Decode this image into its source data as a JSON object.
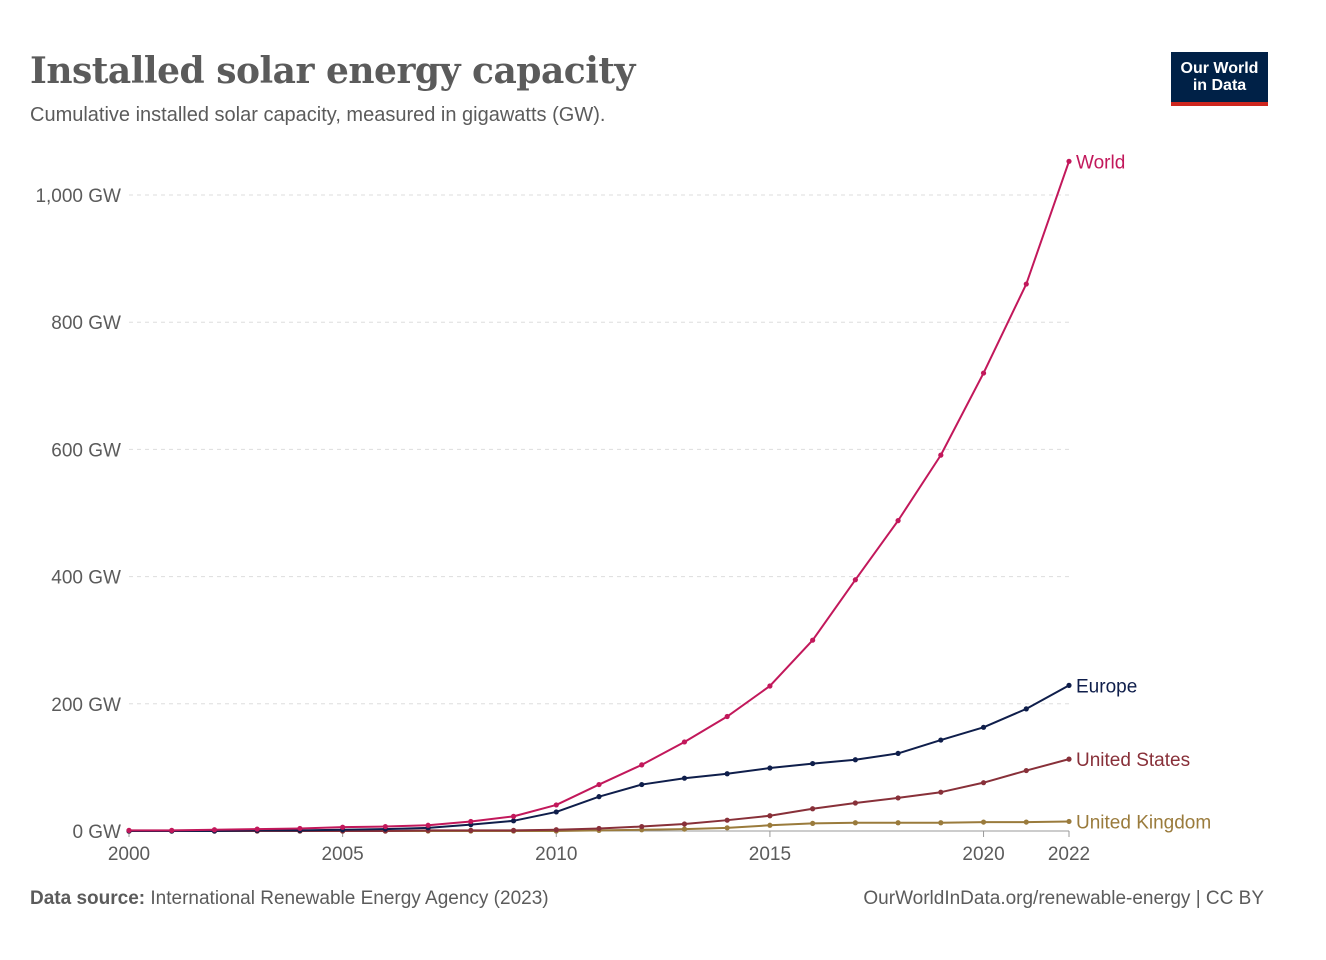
{
  "header": {
    "title": "Installed solar energy capacity",
    "subtitle": "Cumulative installed solar capacity, measured in gigawatts (GW).",
    "logo_line1": "Our World",
    "logo_line2": "in Data"
  },
  "footer": {
    "source_label": "Data source:",
    "source_text": "International Renewable Energy Agency (2023)",
    "url_text": "OurWorldInData.org/renewable-energy | CC BY"
  },
  "chart_data": {
    "type": "line",
    "title": "Installed solar energy capacity",
    "subtitle": "Cumulative installed solar capacity, measured in gigawatts (GW).",
    "xlabel": "",
    "ylabel": "",
    "xlim": [
      2000,
      2022
    ],
    "ylim": [
      0,
      1000
    ],
    "x_ticks": [
      "2000",
      "2005",
      "2010",
      "2015",
      "2020",
      "2022"
    ],
    "y_ticks": [
      "0 GW",
      "200 GW",
      "400 GW",
      "600 GW",
      "800 GW",
      "1,000 GW"
    ],
    "y_tick_values": [
      0,
      200,
      400,
      600,
      800,
      1000
    ],
    "grid": true,
    "legend": "inline labels at line ends (right)",
    "x": [
      2000,
      2001,
      2002,
      2003,
      2004,
      2005,
      2006,
      2007,
      2008,
      2009,
      2010,
      2011,
      2012,
      2013,
      2014,
      2015,
      2016,
      2017,
      2018,
      2019,
      2020,
      2021,
      2022
    ],
    "series": [
      {
        "name": "World",
        "color": "#c2185b",
        "values": [
          1,
          1,
          2,
          3,
          4,
          6,
          7,
          9,
          15,
          23,
          41,
          73,
          104,
          140,
          180,
          228,
          300,
          395,
          488,
          591,
          720,
          860,
          1053
        ]
      },
      {
        "name": "Europe",
        "color": "#0f1e4b",
        "values": [
          0,
          0,
          0,
          1,
          1,
          2,
          3,
          5,
          10,
          16,
          30,
          54,
          73,
          83,
          90,
          99,
          106,
          112,
          122,
          143,
          163,
          192,
          229
        ]
      },
      {
        "name": "United States",
        "color": "#883039",
        "values": [
          0,
          0,
          0,
          0,
          0,
          0,
          0,
          1,
          1,
          1,
          2,
          4,
          7,
          11,
          17,
          24,
          35,
          44,
          52,
          61,
          76,
          95,
          113
        ]
      },
      {
        "name": "United Kingdom",
        "color": "#9a7b3c",
        "values": [
          0,
          0,
          0,
          0,
          0,
          0,
          0,
          0,
          0,
          0,
          0,
          1,
          2,
          3,
          5,
          9,
          12,
          13,
          13,
          13,
          14,
          14,
          15
        ]
      }
    ]
  }
}
